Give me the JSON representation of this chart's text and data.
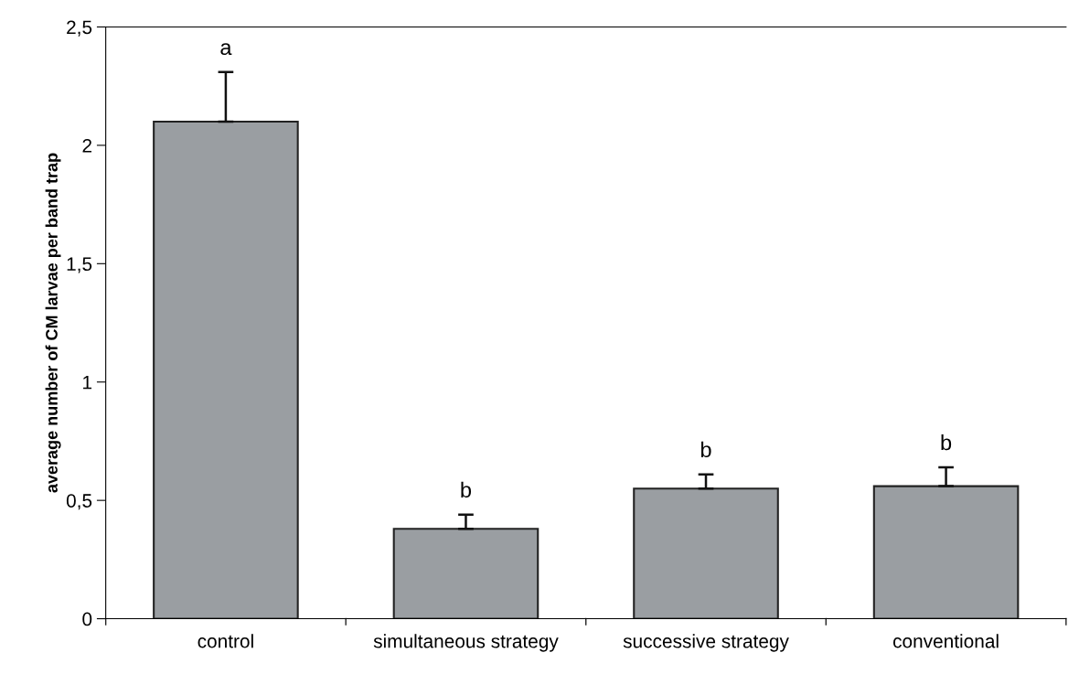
{
  "chart_data": {
    "type": "bar",
    "ylabel": "average number of CM larvae per band trap",
    "categories": [
      "control",
      "simultaneous strategy",
      "successive strategy",
      "conventional"
    ],
    "values": [
      2.1,
      0.38,
      0.55,
      0.56
    ],
    "errors": [
      [
        2.1,
        2.31
      ],
      [
        0.38,
        0.44
      ],
      [
        0.55,
        0.61
      ],
      [
        0.56,
        0.64
      ]
    ],
    "color": "#9a9ea2",
    "ylim": [
      0,
      2.5
    ],
    "yticks": [
      0,
      {
        "value": 0.5,
        "label": "0,5"
      },
      1,
      {
        "value": 1.5,
        "label": "1,5"
      },
      2,
      {
        "value": 2.5,
        "label": "2,5"
      }
    ],
    "grid": false,
    "legend": false,
    "annotations": [
      {
        "text": "a",
        "x": "control",
        "y": 2.31
      },
      {
        "text": "b",
        "x": "simultaneous strategy",
        "y": 0.44
      },
      {
        "text": "b",
        "x": "successive strategy",
        "y": 0.61
      },
      {
        "text": "b",
        "x": "conventional",
        "y": 0.64
      }
    ]
  }
}
